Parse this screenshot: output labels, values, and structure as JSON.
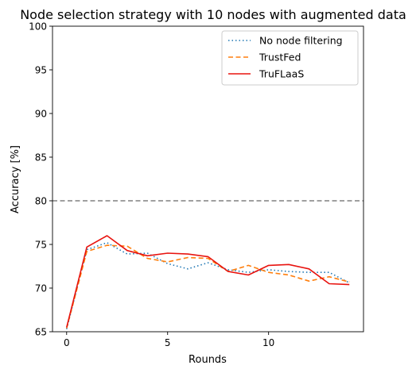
{
  "chart_data": {
    "type": "line",
    "title": "Node selection strategy with 10 nodes with augmented data",
    "xlabel": "Rounds",
    "ylabel": "Accuracy [%]",
    "xlim": [
      -0.7,
      14.7
    ],
    "ylim": [
      65,
      100
    ],
    "xticks": [
      0,
      5,
      10
    ],
    "yticks": [
      65,
      70,
      75,
      80,
      85,
      90,
      95,
      100
    ],
    "grid": false,
    "legend_position": "top-right",
    "reference_line": {
      "value": 80,
      "color": "#808080",
      "style": "dashed"
    },
    "x": [
      0,
      1,
      2,
      3,
      4,
      5,
      6,
      7,
      8,
      9,
      10,
      11,
      12,
      13,
      14
    ],
    "series": [
      {
        "name": "No node filtering",
        "color": "#1f77b4",
        "style": "dotted",
        "values": [
          65.3,
          74.4,
          75.2,
          73.9,
          74.0,
          72.8,
          72.2,
          72.9,
          72.1,
          71.8,
          72.1,
          71.9,
          71.8,
          71.8,
          70.6
        ]
      },
      {
        "name": "TrustFed",
        "color": "#ff7f0e",
        "style": "dashed",
        "values": [
          65.4,
          74.2,
          74.9,
          74.8,
          73.4,
          73.0,
          73.5,
          73.4,
          71.9,
          72.6,
          71.8,
          71.5,
          70.8,
          71.3,
          70.7
        ]
      },
      {
        "name": "TruFLaaS",
        "color": "#e8130f",
        "style": "solid",
        "values": [
          65.5,
          74.7,
          76.0,
          74.3,
          73.7,
          74.0,
          73.9,
          73.6,
          71.9,
          71.5,
          72.6,
          72.7,
          72.2,
          70.5,
          70.4
        ]
      }
    ]
  }
}
